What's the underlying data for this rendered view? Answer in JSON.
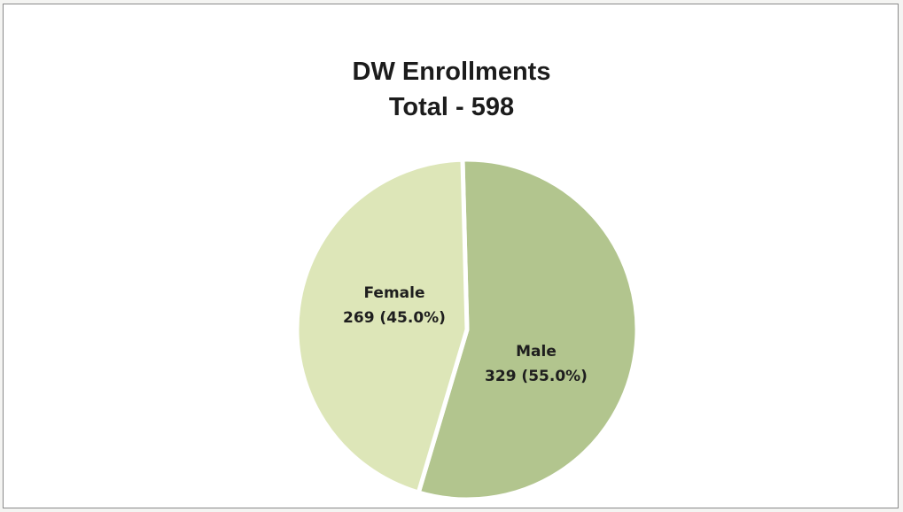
{
  "chart_data": {
    "type": "pie",
    "title": [
      "DW Enrollments",
      "Total - 598"
    ],
    "total": 598,
    "slices": [
      {
        "name": "Female",
        "value": 269,
        "percent_label": "269 (45.0%)",
        "color": "#dde6b8"
      },
      {
        "name": "Male",
        "value": 329,
        "percent_label": "329 (55.0%)",
        "color": "#b2c58e"
      }
    ]
  }
}
